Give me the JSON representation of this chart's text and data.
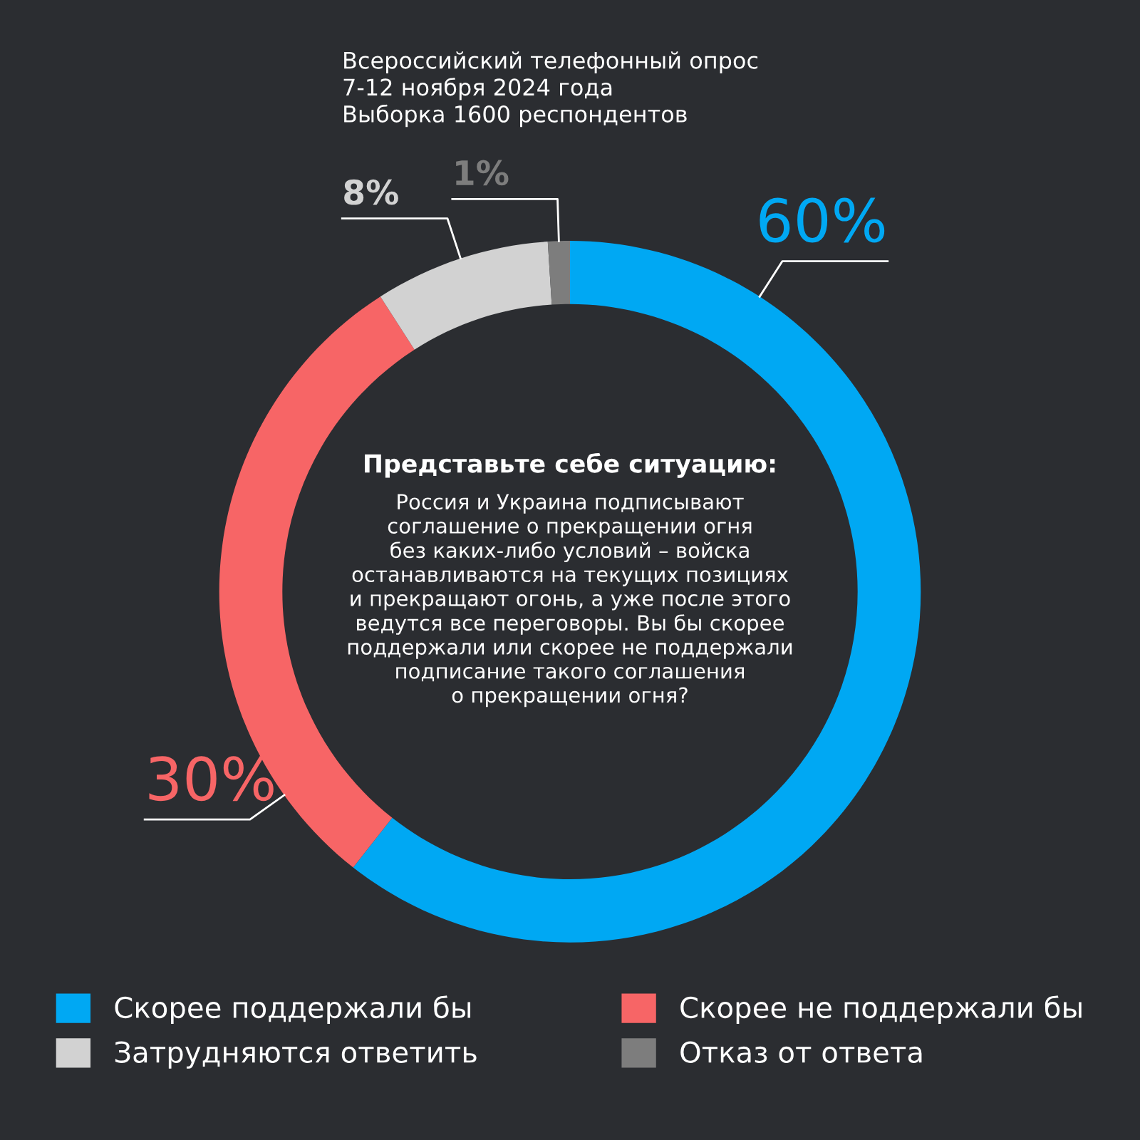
{
  "chart_data": {
    "type": "donut",
    "subtitle": "Всероссийский телефонный опрос\n7-12 ноября 2024 года\nВыборка 1600 респондентов",
    "title": "Представьте себе ситуацию:",
    "annotations": [
      "Россия и Украина подписывают\nсоглашение о прекращении огня\nбез каких-либо условий – войска\nостанавливаются на текущих позициях\nи прекращают огонь, а уже после этого\nведутся все переговоры. Вы бы скорее\nподдержали или скорее не поддержали\nподписание такого соглашения\nо прекращении огня?"
    ],
    "categories": [
      "Скорее поддержали бы",
      "Скорее не поддержали бы",
      "Затрудняются ответить",
      "Отказ от ответа"
    ],
    "values": [
      60,
      30,
      8,
      1
    ],
    "value_labels": [
      "60%",
      "30%",
      "8%",
      "1%"
    ],
    "colors": [
      "#00a8f3",
      "#f76566",
      "#d2d2d2",
      "#7d7d7d"
    ],
    "legend": "bottom"
  }
}
